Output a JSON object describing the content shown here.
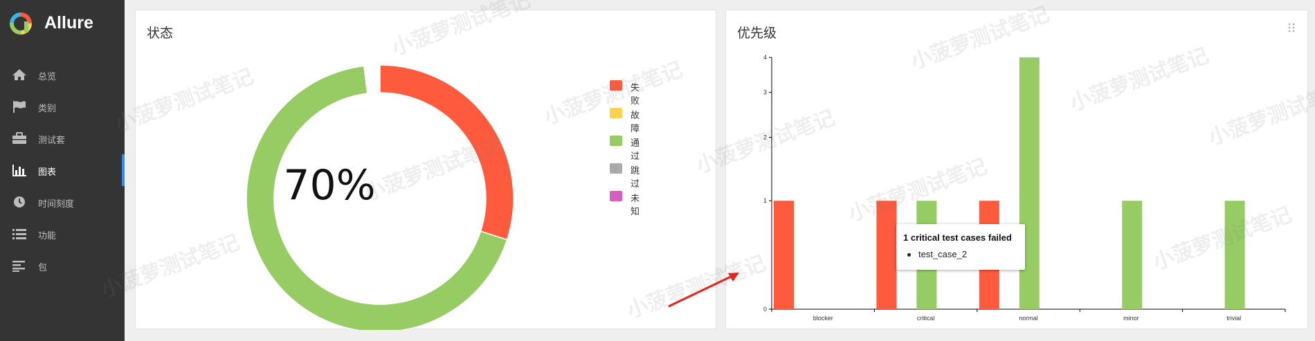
{
  "app": {
    "title": "Allure",
    "logo_colors": [
      "#ff5a3c",
      "#fbd34a",
      "#97cc64",
      "#3cb5e6",
      "#d35ebe"
    ]
  },
  "sidebar": {
    "items": [
      {
        "label": "总览",
        "icon": "home-icon",
        "active": false
      },
      {
        "label": "类别",
        "icon": "flag-icon",
        "active": false
      },
      {
        "label": "测试套",
        "icon": "briefcase-icon",
        "active": false
      },
      {
        "label": "图表",
        "icon": "bar-chart-icon",
        "active": true
      },
      {
        "label": "时间刻度",
        "icon": "clock-icon",
        "active": false
      },
      {
        "label": "功能",
        "icon": "list-icon",
        "active": false
      },
      {
        "label": "包",
        "icon": "align-left-icon",
        "active": false
      }
    ]
  },
  "status_panel": {
    "title": "状态",
    "center_label": "70%",
    "legend": [
      {
        "label": "失败",
        "color": "#fd5a3e"
      },
      {
        "label": "故障",
        "color": "#ffd050"
      },
      {
        "label": "通过",
        "color": "#97cc64"
      },
      {
        "label": "跳过",
        "color": "#aaaaaa"
      },
      {
        "label": "未知",
        "color": "#d35ebe"
      }
    ]
  },
  "priority_panel": {
    "title": "优先级",
    "tooltip": {
      "title": "1 critical test cases failed",
      "items": [
        "test_case_2"
      ]
    }
  },
  "watermark_text": "小菠萝测试笔记",
  "chart_data": [
    {
      "type": "pie",
      "title": "状态",
      "center_label": "70%",
      "slices": [
        {
          "name": "失败",
          "value": 3,
          "color": "#fd5a3e"
        },
        {
          "name": "故障",
          "value": 0,
          "color": "#ffd050"
        },
        {
          "name": "通过",
          "value": 7,
          "color": "#97cc64"
        },
        {
          "name": "跳过",
          "value": 0,
          "color": "#aaaaaa"
        },
        {
          "name": "未知",
          "value": 0,
          "color": "#d35ebe"
        }
      ]
    },
    {
      "type": "bar",
      "title": "优先级",
      "categories": [
        "blocker",
        "critical",
        "normal",
        "minor",
        "trivial"
      ],
      "series": [
        {
          "name": "failed",
          "color": "#fd5a3e",
          "values": [
            1,
            1,
            1,
            0,
            0
          ]
        },
        {
          "name": "passed",
          "color": "#97cc64",
          "values": [
            0,
            1,
            4,
            1,
            1
          ]
        }
      ],
      "yscale": "log",
      "yticks": [
        "0",
        "1",
        "2",
        "3",
        "4"
      ],
      "ylim": [
        0,
        4
      ],
      "grid": false,
      "legend": "none"
    }
  ]
}
